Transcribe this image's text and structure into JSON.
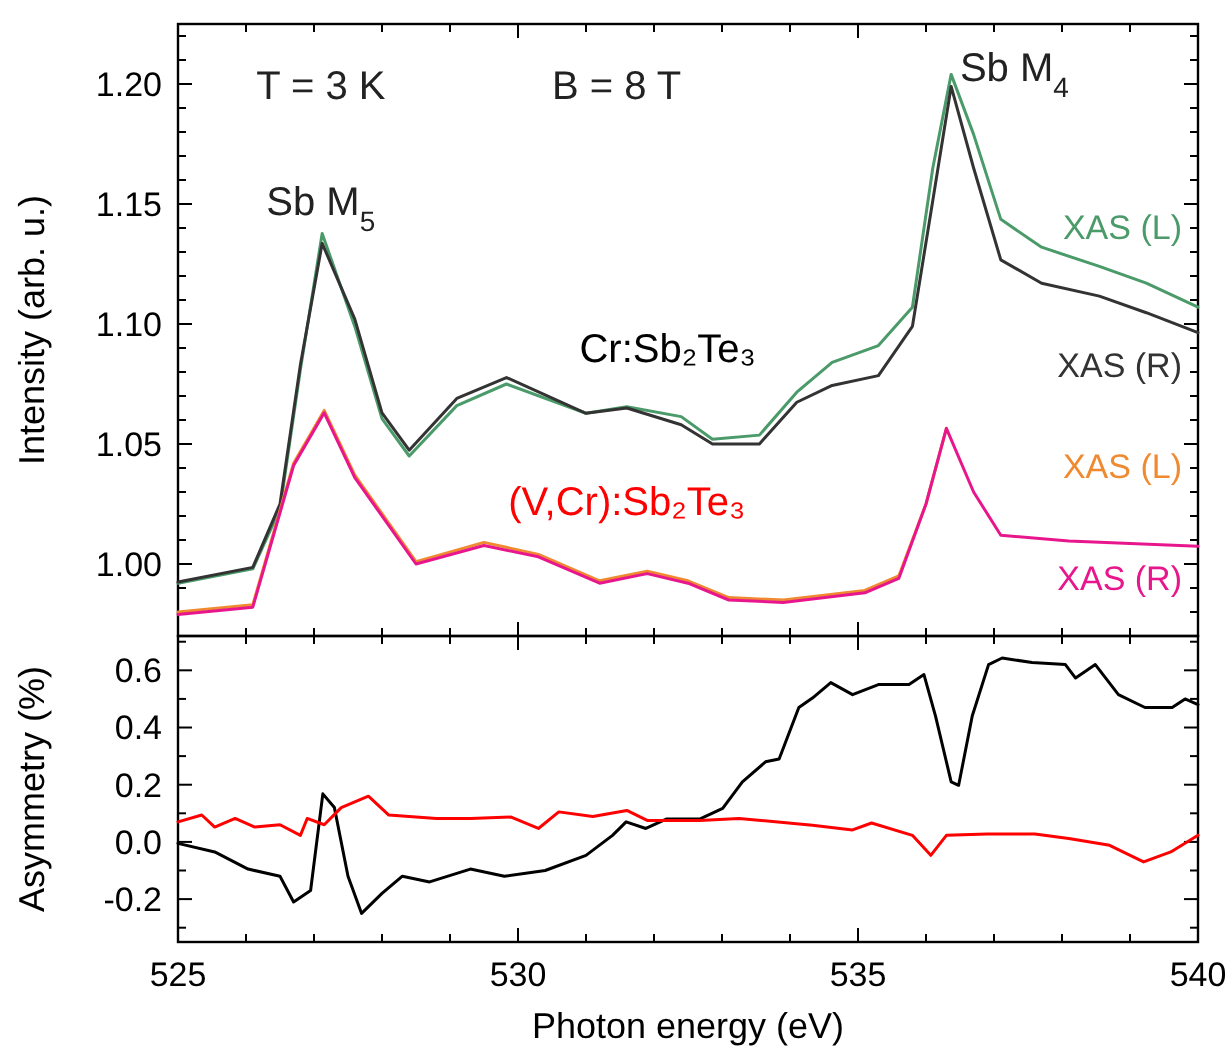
{
  "chart_data": [
    {
      "type": "line",
      "ylabel": "Intensity (arb. u.)",
      "tick_labels": "y",
      "xlim": [
        525,
        540
      ],
      "ylim": [
        0.97,
        1.225
      ],
      "xticks": [
        525,
        {
          "value": 526,
          "label": null
        },
        {
          "value": 527,
          "label": null
        },
        {
          "value": 528,
          "label": null
        },
        {
          "value": 529,
          "label": null
        },
        530,
        {
          "value": 531,
          "label": null
        },
        {
          "value": 532,
          "label": null
        },
        {
          "value": 533,
          "label": null
        },
        {
          "value": 534,
          "label": null
        },
        535,
        {
          "value": 536,
          "label": null
        },
        {
          "value": 537,
          "label": null
        },
        {
          "value": 538,
          "label": null
        },
        {
          "value": 539,
          "label": null
        },
        540
      ],
      "yticks": [
        {
          "value": 0.98,
          "label": null
        },
        {
          "value": 0.99,
          "label": null
        },
        {
          "value": 1.0,
          "label": "1.00"
        },
        {
          "value": 1.01,
          "label": null
        },
        {
          "value": 1.02,
          "label": null
        },
        {
          "value": 1.03,
          "label": null
        },
        {
          "value": 1.04,
          "label": null
        },
        {
          "value": 1.05,
          "label": "1.05"
        },
        {
          "value": 1.06,
          "label": null
        },
        {
          "value": 1.07,
          "label": null
        },
        {
          "value": 1.08,
          "label": null
        },
        {
          "value": 1.09,
          "label": null
        },
        {
          "value": 1.1,
          "label": "1.10"
        },
        {
          "value": 1.11,
          "label": null
        },
        {
          "value": 1.12,
          "label": null
        },
        {
          "value": 1.13,
          "label": null
        },
        {
          "value": 1.14,
          "label": null
        },
        {
          "value": 1.15,
          "label": "1.15"
        },
        {
          "value": 1.16,
          "label": null
        },
        {
          "value": 1.17,
          "label": null
        },
        {
          "value": 1.18,
          "label": null
        },
        {
          "value": 1.19,
          "label": null
        },
        {
          "value": 1.2,
          "label": "1.20"
        },
        {
          "value": 1.21,
          "label": null
        },
        {
          "value": 1.22,
          "label": null
        }
      ],
      "legend": "right",
      "annotations": [
        "T = 3 K",
        "B = 8 T",
        "Sb M$_{5}$",
        "Sb M$_{4}$",
        "Cr:Sb₂Te₃",
        "(V,Cr):Sb₂Te₃"
      ],
      "series": [
        {
          "name": "XAS (L)",
          "color": "#4a9a6a",
          "x": [
            525,
            526.1,
            526.5,
            526.8,
            527.12,
            527.6,
            528,
            528.4,
            529.1,
            529.83,
            531,
            531.6,
            532.4,
            532.86,
            533.55,
            534.1,
            534.62,
            535.3,
            535.8,
            536.1,
            536.37,
            536.7,
            537.1,
            537.7,
            538.55,
            539.24,
            540
          ],
          "values": [
            0.992,
            0.998,
            1.023,
            1.081,
            1.1377,
            1.099,
            1.0606,
            1.045,
            1.066,
            1.075,
            1.0628,
            1.0655,
            1.0614,
            1.052,
            1.0537,
            1.0716,
            1.084,
            1.091,
            1.107,
            1.165,
            1.204,
            1.179,
            1.1436,
            1.132,
            1.124,
            1.117,
            1.107
          ]
        },
        {
          "name": "XAS (R)",
          "color": "#333333",
          "x": [
            525,
            526.1,
            526.5,
            526.8,
            527.12,
            527.6,
            528,
            528.4,
            529.1,
            529.83,
            531,
            531.6,
            532.4,
            532.86,
            533.55,
            534.1,
            534.62,
            535.3,
            535.8,
            536.1,
            536.37,
            536.7,
            537.1,
            537.7,
            538.55,
            539.24,
            540
          ],
          "values": [
            0.9925,
            0.9986,
            1.025,
            1.083,
            1.1336,
            1.102,
            1.063,
            1.0474,
            1.069,
            1.0777,
            1.0628,
            1.065,
            1.058,
            1.05,
            1.05,
            1.0674,
            1.0744,
            1.0785,
            1.099,
            1.1515,
            1.199,
            1.165,
            1.1267,
            1.117,
            1.1116,
            1.1047,
            1.0964
          ]
        },
        {
          "name": "XAS (L)",
          "color": "#f08a30",
          "x": [
            525,
            526.1,
            526.7,
            527.15,
            527.6,
            528.5,
            529.5,
            530.3,
            531.2,
            531.9,
            532.5,
            533.1,
            533.9,
            535.1,
            535.6,
            536,
            536.3
          ],
          "values": [
            0.98,
            0.983,
            1.042,
            1.064,
            1.037,
            1.001,
            1.009,
            1.004,
            0.993,
            0.997,
            0.993,
            0.986,
            0.985,
            0.989,
            0.995,
            1.025,
            1.0565
          ]
        },
        {
          "name": "XAS (R)",
          "color": "#e8168c",
          "x": [
            525,
            526.1,
            526.7,
            527.15,
            527.6,
            528.5,
            529.5,
            530.3,
            531.2,
            531.9,
            532.5,
            533.1,
            533.9,
            535.1,
            535.6,
            536,
            536.3,
            536.7,
            537.1,
            538.1,
            540
          ],
          "values": [
            0.979,
            0.982,
            1.041,
            1.063,
            1.036,
            1.0,
            1.0077,
            1.003,
            0.992,
            0.996,
            0.992,
            0.985,
            0.984,
            0.988,
            0.994,
            1.025,
            1.0565,
            1.03,
            1.012,
            1.0096,
            1.0074
          ]
        }
      ]
    },
    {
      "type": "line",
      "xlabel": "Photon energy (eV)",
      "ylabel": "Asymmetry (%)",
      "xlim": [
        525,
        540
      ],
      "ylim": [
        -0.35,
        0.72
      ],
      "xticks": [
        525,
        {
          "value": 526,
          "label": null
        },
        {
          "value": 527,
          "label": null
        },
        {
          "value": 528,
          "label": null
        },
        {
          "value": 529,
          "label": null
        },
        530,
        {
          "value": 531,
          "label": null
        },
        {
          "value": 532,
          "label": null
        },
        {
          "value": 533,
          "label": null
        },
        {
          "value": 534,
          "label": null
        },
        535,
        {
          "value": 536,
          "label": null
        },
        {
          "value": 537,
          "label": null
        },
        {
          "value": 538,
          "label": null
        },
        {
          "value": 539,
          "label": null
        },
        540
      ],
      "yticks": [
        {
          "value": -0.3,
          "label": null
        },
        {
          "value": -0.2,
          "label": "-0.2"
        },
        {
          "value": -0.1,
          "label": null
        },
        {
          "value": 0,
          "label": "0.0"
        },
        {
          "value": 0.1,
          "label": null
        },
        {
          "value": 0.2,
          "label": "0.2"
        },
        {
          "value": 0.3,
          "label": null
        },
        {
          "value": 0.4,
          "label": "0.4"
        },
        {
          "value": 0.5,
          "label": null
        },
        {
          "value": 0.6,
          "label": "0.6"
        },
        {
          "value": 0.7,
          "label": null
        }
      ],
      "series": [
        {
          "color": "#000000",
          "x": [
            525,
            525.54,
            526.03,
            526.5,
            526.7,
            526.95,
            527.13,
            527.3,
            527.5,
            527.7,
            528,
            528.3,
            528.7,
            529.3,
            529.8,
            530.4,
            531,
            531.39,
            531.59,
            531.88,
            532.18,
            532.67,
            533.01,
            533.3,
            533.64,
            533.84,
            534.13,
            534.33,
            534.6,
            534.92,
            535.3,
            535.75,
            535.97,
            536.14,
            536.37,
            536.48,
            536.68,
            536.92,
            537.12,
            537.56,
            538.05,
            538.2,
            538.49,
            538.83,
            539.22,
            539.62,
            539.81,
            540
          ],
          "values": [
            -0.005,
            -0.035,
            -0.095,
            -0.12,
            -0.21,
            -0.17,
            0.168,
            0.12,
            -0.12,
            -0.25,
            -0.18,
            -0.12,
            -0.14,
            -0.095,
            -0.12,
            -0.1,
            -0.047,
            0.023,
            0.07,
            0.047,
            0.08,
            0.08,
            0.117,
            0.21,
            0.28,
            0.29,
            0.47,
            0.503,
            0.557,
            0.515,
            0.55,
            0.55,
            0.585,
            0.44,
            0.21,
            0.198,
            0.44,
            0.62,
            0.643,
            0.627,
            0.62,
            0.573,
            0.62,
            0.515,
            0.47,
            0.47,
            0.5,
            0.48
          ]
        },
        {
          "color": "#ff0000",
          "x": [
            525,
            525.35,
            525.54,
            525.84,
            526.13,
            526.5,
            526.8,
            526.9,
            527.15,
            527.4,
            527.8,
            528.1,
            528.8,
            529.3,
            529.9,
            530.3,
            530.6,
            531.1,
            531.6,
            531.9,
            532.67,
            533.25,
            534.33,
            534.92,
            535.2,
            535.8,
            536.07,
            536.3,
            536.9,
            537.6,
            538.1,
            538.7,
            539.2,
            539.6,
            540
          ],
          "values": [
            0.07,
            0.094,
            0.052,
            0.082,
            0.052,
            0.06,
            0.023,
            0.082,
            0.06,
            0.12,
            0.16,
            0.094,
            0.082,
            0.082,
            0.087,
            0.047,
            0.105,
            0.089,
            0.11,
            0.075,
            0.075,
            0.082,
            0.058,
            0.042,
            0.066,
            0.023,
            -0.047,
            0.023,
            0.028,
            0.028,
            0.012,
            -0.012,
            -0.07,
            -0.035,
            0.023
          ]
        }
      ]
    }
  ]
}
